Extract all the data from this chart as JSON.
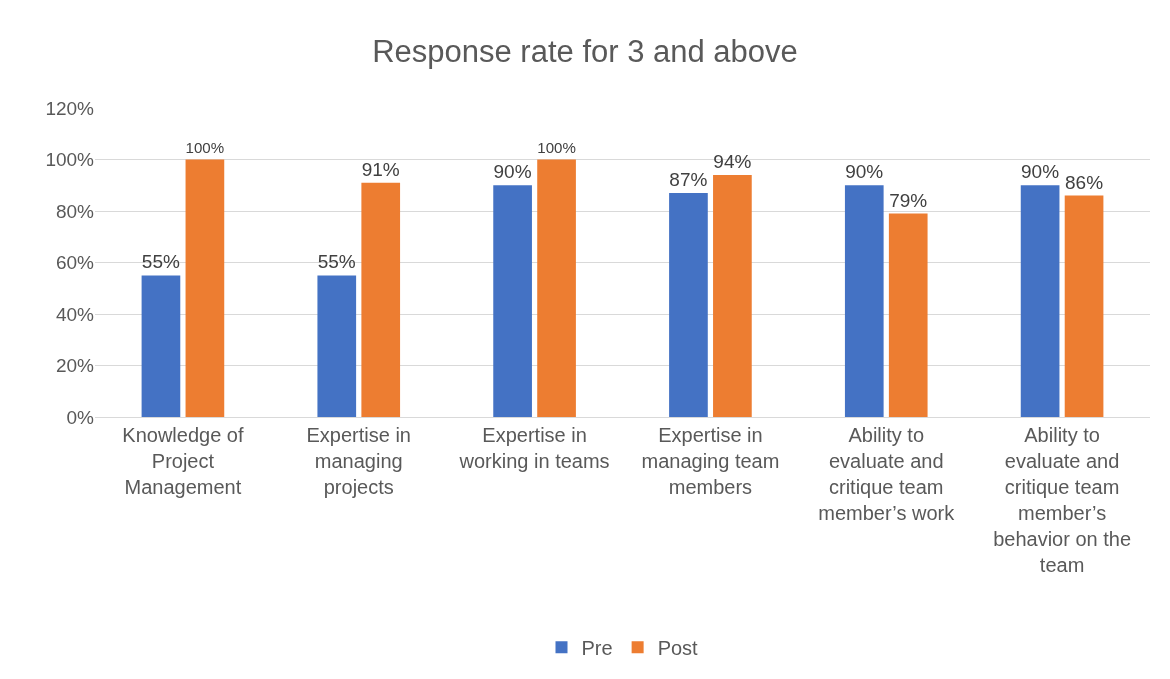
{
  "chart_data": {
    "type": "bar",
    "title": "Response rate for 3 and above",
    "categories": [
      "Knowledge of Project Management",
      "Expertise in managing projects",
      "Expertise in working in teams",
      "Expertise in managing team members",
      "Ability to evaluate and critique team member’s work",
      "Ability to evaluate and critique team member’s behavior on the team"
    ],
    "series": [
      {
        "name": "Pre",
        "color": "#4472c4",
        "values": [
          55,
          55,
          90,
          87,
          90,
          90
        ],
        "value_labels": [
          "55%",
          "55%",
          "90%",
          "87%",
          "90%",
          "90%"
        ]
      },
      {
        "name": "Post",
        "color": "#ed7d31",
        "values": [
          100,
          91,
          100,
          94,
          79,
          86
        ],
        "value_labels": [
          "100%",
          "91%",
          "100%",
          "94%",
          "79%",
          "86%"
        ]
      }
    ],
    "ylim": [
      0,
      120
    ],
    "yticks": [
      {
        "value": 0,
        "label": "0%"
      },
      {
        "value": 20,
        "label": "20%"
      },
      {
        "value": 40,
        "label": "40%"
      },
      {
        "value": 60,
        "label": "60%"
      },
      {
        "value": 80,
        "label": "80%"
      },
      {
        "value": 100,
        "label": "100%"
      },
      {
        "value": 120,
        "label": "120%"
      }
    ],
    "grid": "y",
    "legend": "bottom"
  }
}
